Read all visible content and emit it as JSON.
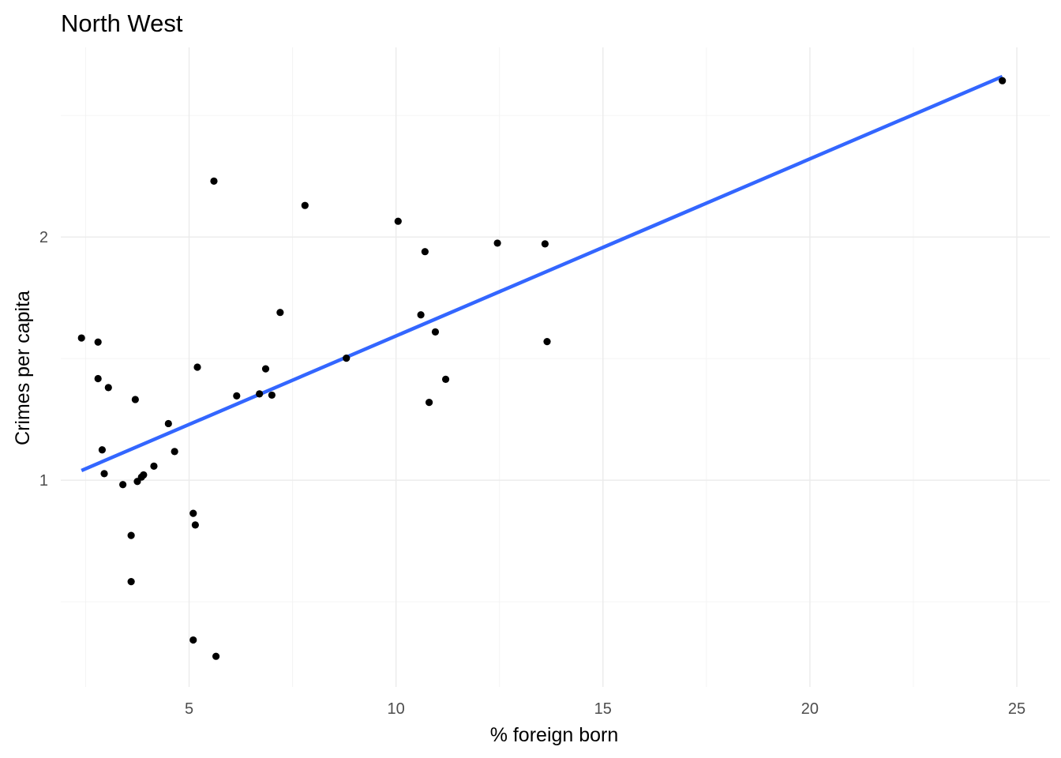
{
  "chart_data": {
    "type": "scatter",
    "title": "North West",
    "xlabel": "% foreign born",
    "ylabel": "Crimes per capita",
    "xlim": [
      1.9,
      25.8
    ],
    "ylim": [
      0.15,
      2.78
    ],
    "x_ticks": [
      5,
      10,
      15,
      20,
      25
    ],
    "x_minor_ticks": [
      2.5,
      7.5,
      12.5,
      17.5,
      22.5
    ],
    "y_ticks": [
      1,
      2
    ],
    "y_minor_ticks": [
      0.5,
      1.5,
      2.5
    ],
    "x_tick_labels": [
      "5",
      "10",
      "15",
      "20",
      "25"
    ],
    "y_tick_labels": [
      "1",
      "2"
    ],
    "grid": true,
    "point_color": "#000000",
    "line_color": "#3366ff",
    "fit_line": {
      "x": [
        2.4,
        24.65
      ],
      "y": [
        1.04,
        2.66
      ]
    },
    "points": [
      {
        "x": 2.4,
        "y": 1.585
      },
      {
        "x": 2.8,
        "y": 1.568
      },
      {
        "x": 2.8,
        "y": 1.418
      },
      {
        "x": 2.9,
        "y": 1.125
      },
      {
        "x": 2.95,
        "y": 1.027
      },
      {
        "x": 3.05,
        "y": 1.381
      },
      {
        "x": 3.4,
        "y": 0.982
      },
      {
        "x": 3.6,
        "y": 0.773
      },
      {
        "x": 3.6,
        "y": 0.583
      },
      {
        "x": 3.7,
        "y": 1.332
      },
      {
        "x": 3.75,
        "y": 0.995
      },
      {
        "x": 3.85,
        "y": 1.013
      },
      {
        "x": 3.9,
        "y": 1.022
      },
      {
        "x": 4.15,
        "y": 1.058
      },
      {
        "x": 4.5,
        "y": 1.233
      },
      {
        "x": 4.65,
        "y": 1.118
      },
      {
        "x": 5.1,
        "y": 0.864
      },
      {
        "x": 5.15,
        "y": 0.816
      },
      {
        "x": 5.2,
        "y": 1.465
      },
      {
        "x": 5.1,
        "y": 0.343
      },
      {
        "x": 5.6,
        "y": 2.23
      },
      {
        "x": 5.65,
        "y": 0.276
      },
      {
        "x": 6.15,
        "y": 1.347
      },
      {
        "x": 6.7,
        "y": 1.355
      },
      {
        "x": 6.85,
        "y": 1.458
      },
      {
        "x": 7.0,
        "y": 1.35
      },
      {
        "x": 7.2,
        "y": 1.69
      },
      {
        "x": 7.8,
        "y": 2.13
      },
      {
        "x": 8.8,
        "y": 1.502
      },
      {
        "x": 10.05,
        "y": 2.065
      },
      {
        "x": 10.6,
        "y": 1.68
      },
      {
        "x": 10.7,
        "y": 1.94
      },
      {
        "x": 10.8,
        "y": 1.32
      },
      {
        "x": 10.95,
        "y": 1.61
      },
      {
        "x": 11.2,
        "y": 1.415
      },
      {
        "x": 12.45,
        "y": 1.975
      },
      {
        "x": 13.6,
        "y": 1.972
      },
      {
        "x": 13.65,
        "y": 1.57
      },
      {
        "x": 24.65,
        "y": 2.643
      }
    ]
  }
}
